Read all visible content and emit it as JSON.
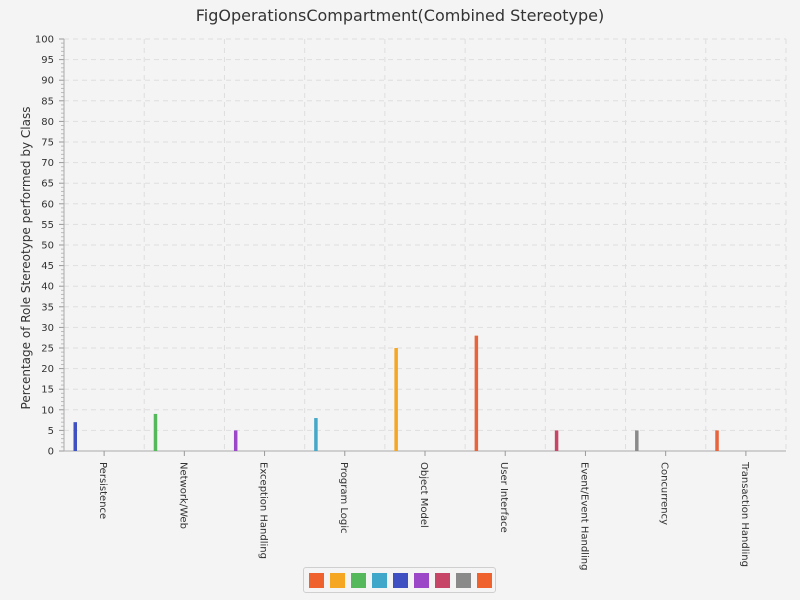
{
  "chart_data": {
    "type": "bar",
    "title": "FigOperationsCompartment(Combined Stereotype)",
    "xlabel": "",
    "ylabel": "Percentage of Role Stereotype performed by Class",
    "ylim": [
      0,
      100
    ],
    "y_ticks": [
      "0",
      "5",
      "10",
      "15",
      "20",
      "25",
      "30",
      "35",
      "40",
      "45",
      "50",
      "55",
      "60",
      "65",
      "70",
      "75",
      "80",
      "85",
      "90",
      "95",
      "100"
    ],
    "categories": [
      "Persistence",
      "Network/Web",
      "Exception Handling",
      "Program Logic",
      "Object Model",
      "User Interface",
      "Event/Event Handling",
      "Concurrency",
      "Transaction Handling"
    ],
    "values": [
      7,
      9,
      5,
      8,
      25,
      28,
      5,
      5,
      5
    ],
    "bar_colors": [
      "#3f51c2",
      "#55b85a",
      "#9c47c8",
      "#46a8c9",
      "#f5a623",
      "#e8643a",
      "#c74566",
      "#8a8a8a",
      "#e8643a"
    ],
    "grid": true,
    "legend": {
      "position": "bottom",
      "swatch_colors": [
        "#f0622d",
        "#f5a623",
        "#55b85a",
        "#3fa7c9",
        "#3f51c2",
        "#9c47c8",
        "#c74566",
        "#8a8a8a",
        "#f0622d"
      ]
    }
  }
}
